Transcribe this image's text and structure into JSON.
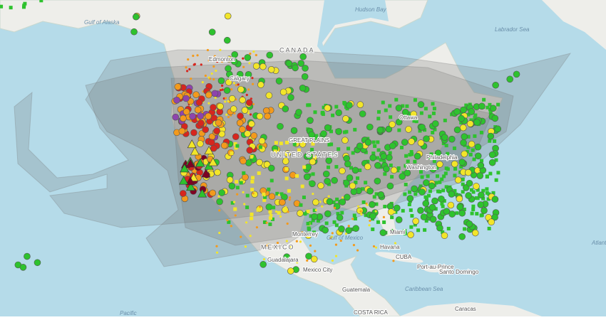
{
  "map": {
    "labels": {
      "hudson_bay": "Hudson Bay",
      "gulf_of_alaska": "Gulf of Alaska",
      "canada": "CANADA",
      "labrador_sea": "Labrador Sea",
      "edmonton": "Edmonton",
      "calgary": "Calgary",
      "ottawa": "Ottawa",
      "philadelphia": "Philadelphia",
      "washington": "Washington",
      "united_states": "UNITED STATES",
      "great_plains": "GREAT PLAINS",
      "monterrey": "Monterrey",
      "mexico": "MEXICO",
      "guadalajara": "Guadalajara",
      "mexico_city": "Mexico City",
      "gulf_of_mexico": "Gulf of Mexico",
      "miami": "Miami",
      "havana": "Havana",
      "cuba": "CUBA",
      "port_au_prince": "Port-au-Prince",
      "santo_domingo": "Santo Domingo",
      "guatemala": "Guatemala",
      "caribbean_sea": "Caribbean Sea",
      "costa_rica": "COSTA RICA",
      "caracas": "Caracas",
      "pacific": "Pacific",
      "atlantic": "Atlantic"
    }
  }
}
